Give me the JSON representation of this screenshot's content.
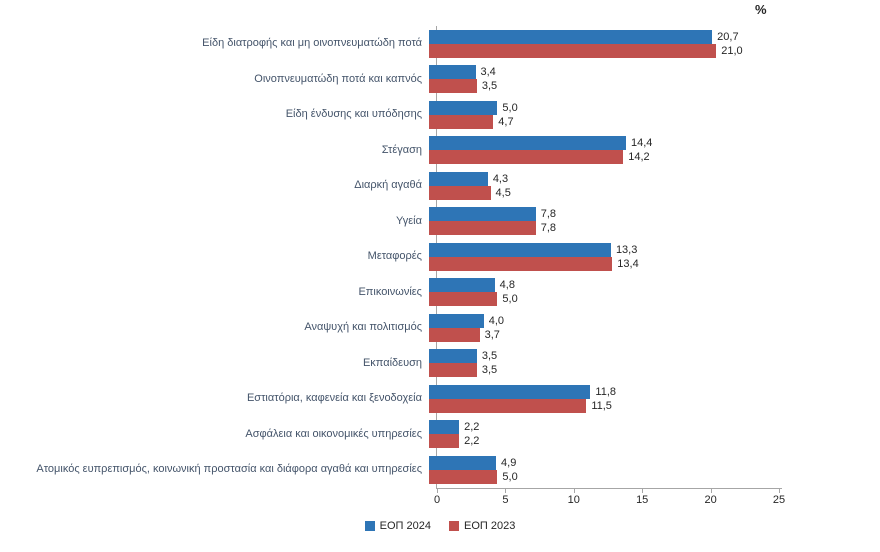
{
  "percent_label": "%",
  "chart_data": {
    "type": "bar",
    "orientation": "horizontal",
    "title": "",
    "xlabel": "%",
    "ylabel": "",
    "xlim": [
      0,
      25
    ],
    "xticks": [
      0,
      5,
      10,
      15,
      20,
      25
    ],
    "grid": false,
    "legend_position": "bottom",
    "categories": [
      "Είδη διατροφής και μη οινοπνευματώδη ποτά",
      "Οινοπνευματώδη ποτά και καπνός",
      "Είδη ένδυσης και υπόδησης",
      "Στέγαση",
      "Διαρκή αγαθά",
      "Υγεία",
      "Μεταφορές",
      "Επικοινωνίες",
      "Αναψυχή και πολιτισμός",
      "Εκπαίδευση",
      "Εστιατόρια, καφενεία και ξενοδοχεία",
      "Ασφάλεια και  οικονομικές υπηρεσίες",
      "Ατομικός ευπρεπισμός, κοινωνική προστασία και διάφορα αγαθά και υπηρεσίες"
    ],
    "series": [
      {
        "name": "ΕΟΠ 2024",
        "color": "#2E75B6",
        "values": [
          20.7,
          3.4,
          5.0,
          14.4,
          4.3,
          7.8,
          13.3,
          4.8,
          4.0,
          3.5,
          11.8,
          2.2,
          4.9
        ]
      },
      {
        "name": "ΕΟΠ 2023",
        "color": "#C0504D",
        "values": [
          21.0,
          3.5,
          4.7,
          14.2,
          4.5,
          7.8,
          13.4,
          5.0,
          3.7,
          3.5,
          11.5,
          2.2,
          5.0
        ]
      }
    ]
  }
}
